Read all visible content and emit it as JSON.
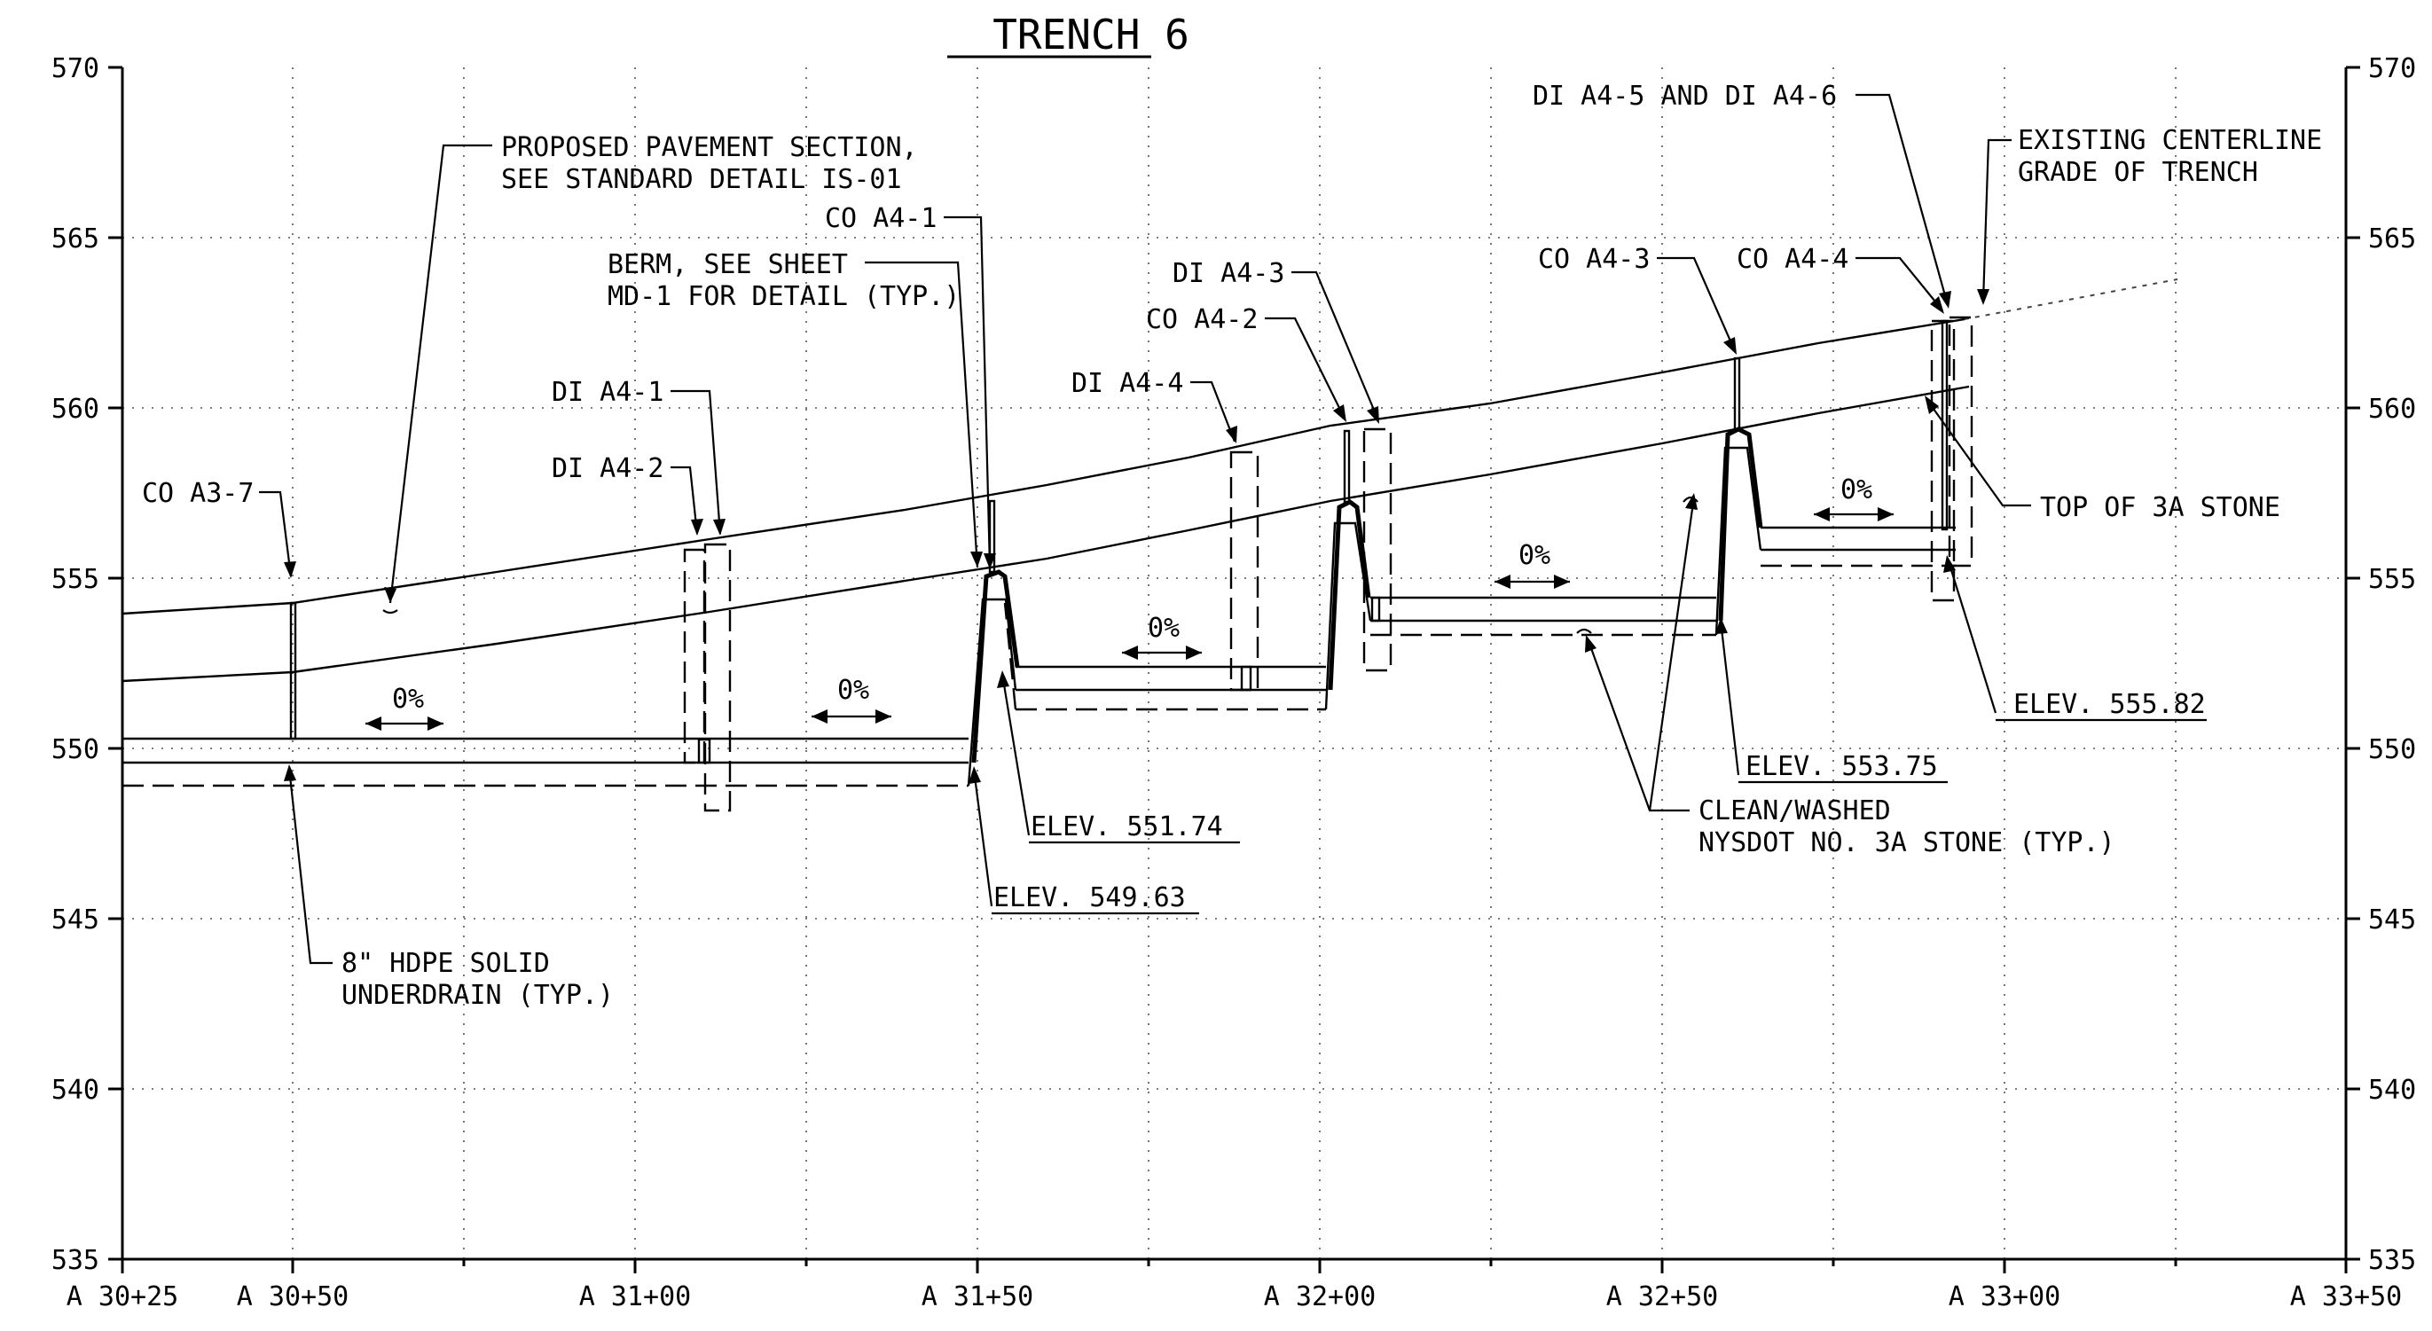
{
  "title": "TRENCH 6",
  "y_axis": {
    "min": 535,
    "max": 570,
    "step": 5,
    "labels": [
      "570",
      "565",
      "560",
      "555",
      "550",
      "545",
      "540",
      "535"
    ]
  },
  "x_axis": {
    "labels": [
      "A 30+25",
      "A 30+50",
      "A 31+00",
      "A 31+50",
      "A 32+00",
      "A 32+50",
      "A 33+00",
      "A 33+50"
    ]
  },
  "slope_labels": [
    "0%",
    "0%",
    "0%",
    "0%",
    "0%"
  ],
  "annotations": {
    "pavement_1": "PROPOSED PAVEMENT SECTION,",
    "pavement_2": "SEE STANDARD DETAIL IS-01",
    "berm_1": "BERM, SEE SHEET",
    "berm_2": "MD-1 FOR DETAIL (TYP.)",
    "co_a3_7": "CO A3-7",
    "di_a4_1": "DI A4-1",
    "di_a4_2": "DI A4-2",
    "co_a4_1": "CO A4-1",
    "di_a4_4": "DI A4-4",
    "co_a4_2": "CO A4-2",
    "di_a4_3": "DI A4-3",
    "co_a4_3": "CO A4-3",
    "co_a4_4": "CO A4-4",
    "di_a4_5_6": "DI A4-5 AND DI A4-6",
    "existing_1": "EXISTING CENTERLINE",
    "existing_2": "GRADE OF TRENCH",
    "top_3a": "TOP OF 3A STONE",
    "elev_555_82": "ELEV. 555.82",
    "elev_553_75": "ELEV. 553.75",
    "elev_551_74": "ELEV. 551.74",
    "elev_549_63": "ELEV. 549.63",
    "clean_1": "CLEAN/WASHED",
    "clean_2": "NYSDOT NO. 3A STONE (TYP.)",
    "underdrain_1": "8\" HDPE SOLID",
    "underdrain_2": "UNDERDRAIN (TYP.)"
  }
}
